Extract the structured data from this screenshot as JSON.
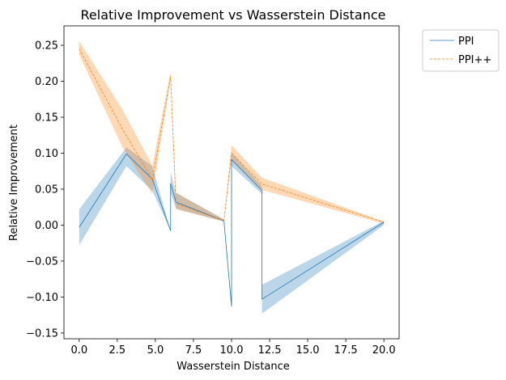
{
  "chart_data": {
    "type": "line",
    "title": "Relative Improvement vs Wasserstein Distance",
    "xlabel": "Wasserstein Distance",
    "ylabel": "Relative Improvement",
    "xlim": [
      -1.0,
      21.0
    ],
    "ylim": [
      -0.158,
      0.277
    ],
    "xticks": [
      0.0,
      2.5,
      5.0,
      7.5,
      10.0,
      12.5,
      15.0,
      17.5,
      20.0
    ],
    "xtick_labels": [
      "0.0",
      "2.5",
      "5.0",
      "7.5",
      "10.0",
      "12.5",
      "15.0",
      "17.5",
      "20.0"
    ],
    "yticks": [
      -0.15,
      -0.1,
      -0.05,
      0.0,
      0.05,
      0.1,
      0.15,
      0.2,
      0.25
    ],
    "ytick_labels": [
      "−0.15",
      "−0.10",
      "−0.05",
      "0.00",
      "0.05",
      "0.10",
      "0.15",
      "0.20",
      "0.25"
    ],
    "grid": false,
    "legend_position": "outside-top-right",
    "series": [
      {
        "name": "PPI",
        "color": "#1f77b4",
        "line_style": "solid",
        "points": [
          {
            "x": 0.0,
            "y": -0.003,
            "lo": -0.028,
            "hi": 0.022
          },
          {
            "x": 3.1,
            "y": 0.099,
            "lo": 0.082,
            "hi": 0.108
          },
          {
            "x": 4.8,
            "y": 0.064,
            "lo": 0.048,
            "hi": 0.082
          },
          {
            "x": 6.0,
            "y": -0.008,
            "lo": -0.008,
            "hi": -0.008
          },
          {
            "x": 6.0,
            "y": 0.058,
            "lo": 0.045,
            "hi": 0.074
          },
          {
            "x": 6.35,
            "y": 0.032,
            "lo": 0.023,
            "hi": 0.045
          },
          {
            "x": 9.5,
            "y": 0.006,
            "lo": 0.005,
            "hi": 0.008
          },
          {
            "x": 10.0,
            "y": -0.113,
            "lo": -0.113,
            "hi": -0.113
          },
          {
            "x": 10.0,
            "y": 0.091,
            "lo": 0.082,
            "hi": 0.101
          },
          {
            "x": 12.0,
            "y": 0.048,
            "lo": 0.043,
            "hi": 0.054
          },
          {
            "x": 12.0,
            "y": -0.103,
            "lo": -0.123,
            "hi": -0.083
          },
          {
            "x": 20.0,
            "y": 0.004,
            "lo": 0.0,
            "hi": 0.006
          }
        ]
      },
      {
        "name": "PPI++",
        "color": "#ff7f0e",
        "line_style": "dashed",
        "points": [
          {
            "x": 0.0,
            "y": 0.245,
            "lo": 0.237,
            "hi": 0.256
          },
          {
            "x": 2.8,
            "y": 0.135,
            "lo": 0.11,
            "hi": 0.162
          },
          {
            "x": 4.8,
            "y": 0.063,
            "lo": 0.043,
            "hi": 0.083
          },
          {
            "x": 6.0,
            "y": 0.207,
            "lo": 0.201,
            "hi": 0.213
          },
          {
            "x": 6.35,
            "y": 0.03,
            "lo": 0.022,
            "hi": 0.045
          },
          {
            "x": 9.5,
            "y": 0.006,
            "lo": 0.005,
            "hi": 0.008
          },
          {
            "x": 10.0,
            "y": 0.1,
            "lo": 0.09,
            "hi": 0.111
          },
          {
            "x": 12.0,
            "y": 0.057,
            "lo": 0.049,
            "hi": 0.066
          },
          {
            "x": 20.0,
            "y": 0.004,
            "lo": 0.002,
            "hi": 0.005
          }
        ]
      }
    ]
  }
}
